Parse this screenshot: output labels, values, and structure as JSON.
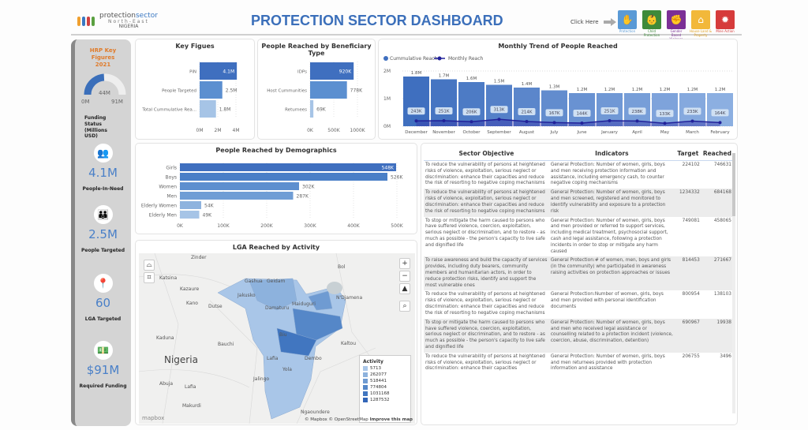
{
  "header": {
    "logo": {
      "line1_a": "protection",
      "line1_b": "sector",
      "line2": "North-East",
      "line3": "NIGERIA"
    },
    "title": "PROTECTION SECTOR DASHBOARD",
    "click_here": "Click Here",
    "areas": [
      {
        "label": "Protection",
        "color": "#5a9ad6",
        "label_color": "#5a9ad6",
        "icon": "hands-people-icon"
      },
      {
        "label": "Child Protection",
        "color": "#3e8a3a",
        "label_color": "#3e8a3a",
        "icon": "child-protection-icon"
      },
      {
        "label": "Gender Based Violence",
        "color": "#7b2f96",
        "label_color": "#7b2f96",
        "icon": "gbv-icon"
      },
      {
        "label": "House Land & Property",
        "color": "#f2b83a",
        "label_color": "#e0a020",
        "icon": "house-icon"
      },
      {
        "label": "Mine Action",
        "color": "#d63b3b",
        "label_color": "#d63b3b",
        "icon": "mine-icon"
      }
    ]
  },
  "sidebar": {
    "title": "HRP Key Figures 2021",
    "gauge": {
      "value_label": "44M",
      "min_label": "0M",
      "max_label": "91M",
      "value": 44,
      "max": 91
    },
    "gauge_caption": "Funding Status (Millions USD)",
    "stats": [
      {
        "value": "4.1M",
        "label": "People-In-Need",
        "icon": "people-group-icon"
      },
      {
        "value": "2.5M",
        "label": "People Targeted",
        "icon": "target-people-icon"
      },
      {
        "value": "60",
        "label": "LGA Targeted",
        "icon": "location-pin-icon"
      },
      {
        "value": "$91M",
        "label": "Required Funding",
        "icon": "money-icon"
      }
    ]
  },
  "chart_data": [
    {
      "type": "bar",
      "orientation": "horizontal",
      "title": "Key Figues",
      "categories": [
        "PiN",
        "People Targeted",
        "Total Cummulative Rea..."
      ],
      "values": [
        4100000,
        2500000,
        1800000
      ],
      "labels": [
        "4.1M",
        "2.5M",
        "1.8M"
      ],
      "xticks": [
        "0M",
        "2M",
        "4M"
      ],
      "xlim": [
        0,
        4000000
      ],
      "colors": [
        "#3f6fbf",
        "#5b8fd0",
        "#a6c4e6"
      ]
    },
    {
      "type": "bar",
      "orientation": "horizontal",
      "title": "People Reached by Beneficiary Type",
      "categories": [
        "IDPs",
        "Host Cummunities",
        "Returnees"
      ],
      "values": [
        920000,
        778000,
        69000
      ],
      "labels": [
        "920K",
        "778K",
        "69K"
      ],
      "xticks": [
        "0K",
        "500K",
        "1000K"
      ],
      "xlim": [
        0,
        1000000
      ],
      "colors": [
        "#3f6fbf",
        "#5b8fd0",
        "#a6c4e6"
      ]
    },
    {
      "type": "bar+line",
      "title": "Monthly Trend of People Reached",
      "legend": [
        "Cummulative Reach",
        "Monthly Reach"
      ],
      "legend_position": "top-left",
      "categories": [
        "December",
        "November",
        "October",
        "September",
        "August",
        "July",
        "June",
        "January",
        "April",
        "May",
        "March",
        "February"
      ],
      "series": [
        {
          "name": "Cummulative Reach",
          "values": [
            1800000,
            1700000,
            1600000,
            1500000,
            1400000,
            1300000,
            1200000,
            1200000,
            1200000,
            1200000,
            1200000,
            1200000
          ],
          "labels": [
            "1.8M",
            "1.7M",
            "1.6M",
            "1.5M",
            "1.4M",
            "1.3M",
            "1.2M",
            "1.2M",
            "1.2M",
            "1.2M",
            "1.2M",
            "1.2M"
          ]
        },
        {
          "name": "Monthly Reach",
          "values": [
            243000,
            251000,
            206000,
            313000,
            214000,
            167000,
            144000,
            251000,
            238000,
            133000,
            233000,
            164000
          ],
          "labels": [
            "243K",
            "251K",
            "206K",
            "313K",
            "214K",
            "167K",
            "144K",
            "251K",
            "238K",
            "133K",
            "233K",
            "164K"
          ]
        }
      ],
      "yticks": [
        "0M",
        "1M",
        "2M"
      ],
      "ylim": [
        0,
        2000000
      ]
    },
    {
      "type": "bar",
      "orientation": "horizontal",
      "title": "People Reached by Demographics",
      "categories": [
        "Girls",
        "Boys",
        "Women",
        "Men",
        "Elderly Women",
        "Elderly Men"
      ],
      "values": [
        548000,
        526000,
        302000,
        287000,
        54000,
        49000
      ],
      "labels": [
        "548K",
        "526K",
        "302K",
        "287K",
        "54K",
        "49K"
      ],
      "xticks": [
        "0K",
        "100K",
        "200K",
        "300K",
        "400K",
        "500K"
      ],
      "xlim": [
        0,
        550000
      ],
      "colors": [
        "#3f6fbf",
        "#4a7fc7",
        "#5d8fcf",
        "#6f9dd5",
        "#8eb3de",
        "#a6c4e6"
      ]
    }
  ],
  "map": {
    "title": "LGA Reached by Activity",
    "legend_title": "Activity",
    "legend": [
      {
        "label": "5713",
        "color": "#a9c6e8"
      },
      {
        "label": "262077",
        "color": "#8db2dd"
      },
      {
        "label": "518441",
        "color": "#6f9bd2"
      },
      {
        "label": "774804",
        "color": "#5587c8"
      },
      {
        "label": "1031168",
        "color": "#4176c0"
      },
      {
        "label": "1287532",
        "color": "#3366b8"
      }
    ],
    "places": [
      "Zinder",
      "Katsina",
      "Kazaure",
      "Kano",
      "Dutse",
      "Busau",
      "Gashua",
      "Geidam",
      "Jakusko",
      "Damaturu",
      "Maiduguri",
      "N'Djamena",
      "Bol",
      "Biu",
      "Bauchi",
      "Kaduna",
      "Kaltou",
      "Nigeria",
      "Dembo",
      "Lafia",
      "Yola",
      "Jalingo",
      "Abuja",
      "Lafia",
      "Makurdi",
      "Ngaoundere"
    ],
    "attribution": "© Mapbox © OpenStreetMap",
    "improve": "Improve this map",
    "mapbox_logo": "mapbox"
  },
  "table": {
    "columns": [
      "Sector Objective",
      "Indicators",
      "Target",
      "Reached"
    ],
    "rows": [
      {
        "objective": "To reduce the vulnerability of persons at heightened risks of violence, exploitation, serious neglect or discrimination: enhance their capacities and reduce the risk of resorting to negative coping mechanisms",
        "indicator": "General Protection: Number of women, girls, boys and men receiving protection information and assistance, including emergency cash, to counter negative coping mechanisms",
        "target": "224102",
        "reached": "746631"
      },
      {
        "objective": "To reduce the vulnerability of persons at heightened risks of violence, exploitation, serious neglect or discrimination: enhance their capacities and reduce the risk of resorting to negative coping mechanisms",
        "indicator": "General Protection: Number of women, girls, boys and men screened, registered and monitored to identify vulnerability and exposure to a protection risk",
        "target": "1234332",
        "reached": "684168"
      },
      {
        "objective": "To stop or mitigate the harm caused to persons who have suffered violence, coercion, exploitation, serious neglect or discrimination, and to restore - as much as possible - the person's capacity to live safe and dignified life",
        "indicator": "General Protection: Number of women, girls, boys and men provided or referred to support services, including medical treatment, psychosocial support, cash and legal assistance, following a protection incidents in order to stop or mitigate any harm caused",
        "target": "749081",
        "reached": "458065"
      },
      {
        "objective": "To raise awareness and build the capacity of services provides, including duty bearers, community members and humanitarian actors, in order to reduce protection risks, identify and support the most vulnerable ones",
        "indicator": "General Protection:# of women, men, boys and girls (in the community) who participated in awareness raising activities on protection approaches or issues",
        "target": "814453",
        "reached": "271667"
      },
      {
        "objective": "To reduce the vulnerability of persons at heightened risks of violence, exploitation, serious neglect or discrimination: enhance their capacities and reduce the risk of resorting to negative coping mechanisms",
        "indicator": "General Protection:Number of women, girls, boys and men provided with personal identification documents",
        "target": "800954",
        "reached": "138103"
      },
      {
        "objective": "To stop or mitigate the harm caused to persons who have suffered violence, coercion, exploitation, serious neglect or discrimination, and to restore - as much as possible - the person's capacity to live safe and dignified life",
        "indicator": "General Protection: Number of women, girls, boys and men who received legal assistance or counselling related to a protection incident (violence, coercion, abuse, discrimination, detention)",
        "target": "690967",
        "reached": "19938"
      },
      {
        "objective": "To reduce the vulnerability of persons at heightened risks of violence, exploitation, serious neglect or discrimination: enhance their capacities",
        "indicator": "General Protection: Number of women, girls, boys and men returnees provided with protection information and assistance",
        "target": "206755",
        "reached": "3496"
      }
    ]
  }
}
